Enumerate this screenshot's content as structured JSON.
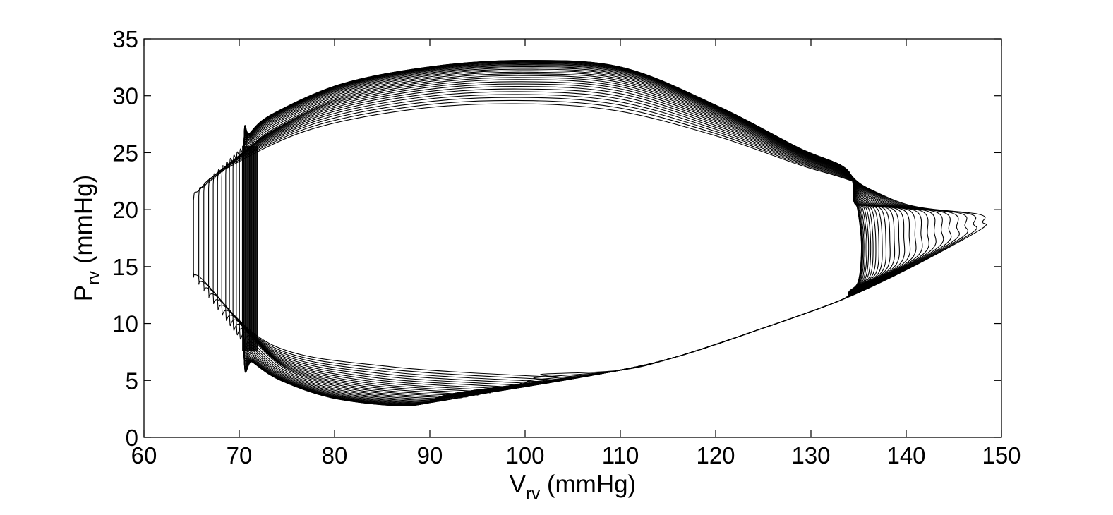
{
  "chart_data": {
    "type": "line",
    "title": "",
    "xlabel": {
      "main": "V",
      "sub": "rv",
      "unit": " (mmHg)"
    },
    "ylabel": {
      "main": "P",
      "sub": "rv",
      "unit": " (mmHg)"
    },
    "xlim": [
      60,
      150
    ],
    "ylim": [
      0,
      35
    ],
    "x_ticks": [
      "60",
      "70",
      "80",
      "90",
      "100",
      "110",
      "120",
      "130",
      "140",
      "150"
    ],
    "y_ticks": [
      "0",
      "5",
      "10",
      "15",
      "20",
      "25",
      "30",
      "35"
    ],
    "grid": false,
    "legend": "none",
    "line_color": "#000000",
    "loop_count": 30,
    "series": [
      {
        "description_of_family": "pressure-volume loops; first and last loops shown",
        "first_loop": {
          "v_min": 65.2,
          "v_max": 148.0,
          "p_min": 5.3,
          "p_max": 29.3,
          "v_at_p_max": 99,
          "v_at_p_min": 103,
          "p_at_v_max": 18.8,
          "p_left_bottom": 14.5,
          "p_left_top": 20.8
        },
        "last_loop": {
          "v_min": 70.5,
          "v_max": 135.3,
          "p_min": 2.8,
          "p_max": 33.1,
          "v_at_p_max": 100,
          "v_at_p_min": 88,
          "p_right_bottom": 13.8,
          "p_right_top": 20.0,
          "p_left_bottom": 7.2,
          "p_left_top": 25.8
        }
      }
    ]
  }
}
